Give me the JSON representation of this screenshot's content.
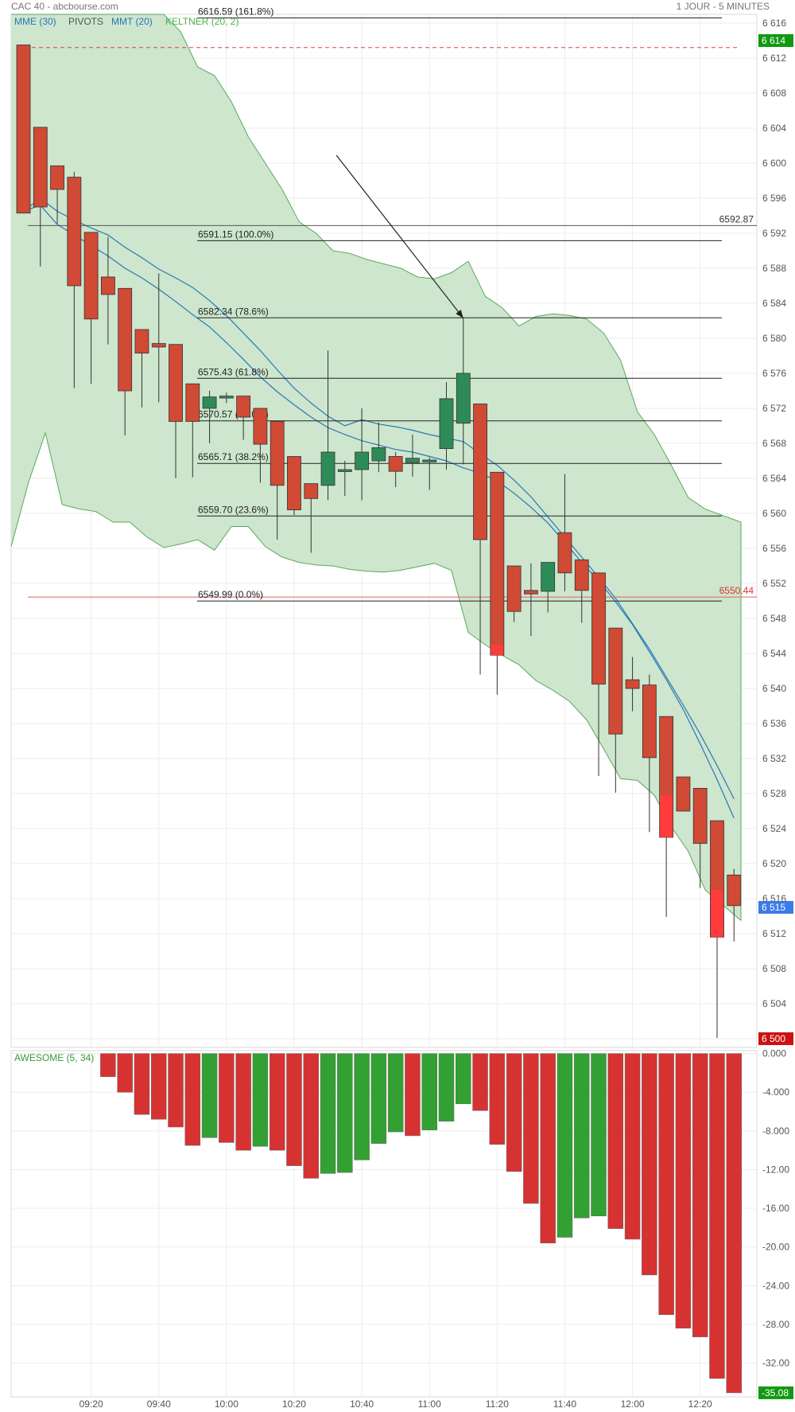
{
  "header": {
    "title": "CAC 40 - abcbourse.com",
    "timeframe": "1 JOUR - 5 MINUTES"
  },
  "legend": [
    "MME (30)",
    "PIVOTS",
    "MMT (20)",
    "KELTNER (20, 2)"
  ],
  "oscillator_legend": "AWESOME (5, 34)",
  "colors": {
    "up": "#2e8b57",
    "down": "#d04a35",
    "down_bright": "#ff3b3b",
    "keltner_fill": "#cde6cd",
    "keltner_line": "#5ca85c",
    "ma": "#2a77b7",
    "ao_up": "#33a033",
    "ao_down": "#d63232",
    "last_price_badge": "#3b7be8",
    "high_badge": "#119911",
    "low_badge": "#cc1111"
  },
  "chart_data": [
    {
      "type": "candlestick",
      "title": "CAC 40",
      "interval": "5 min",
      "ylim": [
        6499,
        6617
      ],
      "y_ticks": [
        6616,
        6612,
        6608,
        6604,
        6600,
        6596,
        6592,
        6588,
        6584,
        6580,
        6576,
        6572,
        6568,
        6564,
        6560,
        6556,
        6552,
        6548,
        6544,
        6540,
        6536,
        6532,
        6528,
        6524,
        6520,
        6516,
        6512,
        6508,
        6504,
        6500
      ],
      "x_tick_labels": [
        {
          "index": 4,
          "label": "09:20"
        },
        {
          "index": 8,
          "label": "09:40"
        },
        {
          "index": 12,
          "label": "10:00"
        },
        {
          "index": 16,
          "label": "10:20"
        },
        {
          "index": 20,
          "label": "10:40"
        },
        {
          "index": 24,
          "label": "11:00"
        },
        {
          "index": 28,
          "label": "11:20"
        },
        {
          "index": 32,
          "label": "11:40"
        },
        {
          "index": 36,
          "label": "12:00"
        },
        {
          "index": 40,
          "label": "12:20"
        }
      ],
      "candles": [
        {
          "o": 6613.5,
          "h": 6613.5,
          "l": 6594.3,
          "c": 6594.3
        },
        {
          "o": 6604.1,
          "h": 6604.1,
          "l": 6588.2,
          "c": 6595.0
        },
        {
          "o": 6599.7,
          "h": 6599.7,
          "l": 6593.1,
          "c": 6597.0
        },
        {
          "o": 6598.4,
          "h": 6599.0,
          "l": 6574.3,
          "c": 6586.0
        },
        {
          "o": 6592.1,
          "h": 6592.1,
          "l": 6574.8,
          "c": 6582.2
        },
        {
          "o": 6587.0,
          "h": 6591.6,
          "l": 6579.3,
          "c": 6585.0
        },
        {
          "o": 6585.7,
          "h": 6585.7,
          "l": 6568.9,
          "c": 6574.0
        },
        {
          "o": 6581.0,
          "h": 6581.0,
          "l": 6572.1,
          "c": 6578.3
        },
        {
          "o": 6579.4,
          "h": 6587.4,
          "l": 6572.7,
          "c": 6579.0
        },
        {
          "o": 6579.3,
          "h": 6579.3,
          "l": 6564.0,
          "c": 6570.5
        },
        {
          "o": 6574.8,
          "h": 6574.8,
          "l": 6564.1,
          "c": 6570.5
        },
        {
          "o": 6572.0,
          "h": 6574.0,
          "l": 6568.0,
          "c": 6573.3
        },
        {
          "o": 6573.2,
          "h": 6573.8,
          "l": 6572.6,
          "c": 6573.4
        },
        {
          "o": 6573.4,
          "h": 6573.4,
          "l": 6568.4,
          "c": 6571.0
        },
        {
          "o": 6572.0,
          "h": 6572.0,
          "l": 6563.5,
          "c": 6567.9
        },
        {
          "o": 6570.5,
          "h": 6570.5,
          "l": 6557.0,
          "c": 6563.2
        },
        {
          "o": 6566.5,
          "h": 6566.5,
          "l": 6559.8,
          "c": 6560.4
        },
        {
          "o": 6563.4,
          "h": 6563.4,
          "l": 6555.5,
          "c": 6561.7
        },
        {
          "o": 6563.2,
          "h": 6578.6,
          "l": 6561.5,
          "c": 6567.0
        },
        {
          "o": 6565.0,
          "h": 6566.0,
          "l": 6562.0,
          "c": 6565.0
        },
        {
          "o": 6565.0,
          "h": 6572.0,
          "l": 6561.5,
          "c": 6567.0
        },
        {
          "o": 6566.0,
          "h": 6570.4,
          "l": 6564.7,
          "c": 6567.5
        },
        {
          "o": 6566.5,
          "h": 6567.0,
          "l": 6563.0,
          "c": 6564.8
        },
        {
          "o": 6565.8,
          "h": 6569.0,
          "l": 6564.2,
          "c": 6566.3
        },
        {
          "o": 6565.9,
          "h": 6566.4,
          "l": 6562.7,
          "c": 6566.1
        },
        {
          "o": 6567.4,
          "h": 6575.0,
          "l": 6565.0,
          "c": 6573.1
        },
        {
          "o": 6570.3,
          "h": 6582.3,
          "l": 6565.6,
          "c": 6576.0
        },
        {
          "o": 6572.5,
          "h": 6572.5,
          "l": 6541.6,
          "c": 6557.0
        },
        {
          "o": 6564.7,
          "h": 6564.7,
          "l": 6539.3,
          "c": 6543.8
        },
        {
          "o": 6554.0,
          "h": 6554.0,
          "l": 6547.6,
          "c": 6548.8
        },
        {
          "o": 6551.2,
          "h": 6554.3,
          "l": 6546.0,
          "c": 6550.8
        },
        {
          "o": 6551.1,
          "h": 6554.4,
          "l": 6548.7,
          "c": 6554.4
        },
        {
          "o": 6557.8,
          "h": 6564.5,
          "l": 6551.1,
          "c": 6553.2
        },
        {
          "o": 6554.7,
          "h": 6554.7,
          "l": 6547.5,
          "c": 6551.2
        },
        {
          "o": 6553.2,
          "h": 6553.2,
          "l": 6530.0,
          "c": 6540.5
        },
        {
          "o": 6546.9,
          "h": 6546.9,
          "l": 6528.1,
          "c": 6534.8
        },
        {
          "o": 6541.0,
          "h": 6543.6,
          "l": 6537.4,
          "c": 6540.0
        },
        {
          "o": 6540.4,
          "h": 6541.6,
          "l": 6523.6,
          "c": 6532.1
        },
        {
          "o": 6536.8,
          "h": 6536.8,
          "l": 6513.9,
          "c": 6523.0
        },
        {
          "o": 6529.9,
          "h": 6529.9,
          "l": 6526.0,
          "c": 6526.0
        },
        {
          "o": 6528.6,
          "h": 6528.6,
          "l": 6517.2,
          "c": 6522.3
        },
        {
          "o": 6524.9,
          "h": 6524.9,
          "l": 6500.1,
          "c": 6511.6
        },
        {
          "o": 6518.7,
          "h": 6519.4,
          "l": 6511.1,
          "c": 6515.2
        }
      ],
      "keltner": {
        "upper": [
          6622,
          6622,
          6622,
          6622,
          6622,
          6622,
          6622,
          6622,
          6622,
          6620.0,
          6615.0,
          6611.0,
          6610.0,
          6607.0,
          6603.0,
          6600.0,
          6597.0,
          6593.3,
          6592.0,
          6590.0,
          6589.7,
          6589.0,
          6588.5,
          6588.0,
          6587.0,
          6586.8,
          6587.5,
          6588.8,
          6584.8,
          6583.5,
          6581.4,
          6582.5,
          6582.8,
          6582.6,
          6582.2,
          6580.6,
          6577.5,
          6571.6,
          6569.0,
          6565.5,
          6561.8,
          6560.5,
          6559.0
        ],
        "lower": [
          6556.2,
          6563.5,
          6569.2,
          6561.0,
          6560.5,
          6560.2,
          6559.0,
          6559.0,
          6557.3,
          6556.1,
          6556.5,
          6557.0,
          6555.8,
          6558.5,
          6558.5,
          6556.2,
          6555.0,
          6554.4,
          6554.1,
          6554.0,
          6553.6,
          6553.4,
          6553.3,
          6553.5,
          6553.9,
          6554.3,
          6553.5,
          6546.4,
          6545.0,
          6543.8,
          6542.7,
          6540.9,
          6539.8,
          6538.5,
          6536.4,
          6533.1,
          6529.7,
          6529.5,
          6527.8,
          6524.2,
          6521.4,
          6517.0,
          6513.5
        ]
      },
      "mme_30": [
        6594.5,
        6596.0,
        6594.5,
        6593.5,
        6592.6,
        6591.8,
        6590.4,
        6589.2,
        6587.9,
        6586.9,
        6585.8,
        6584.3,
        6582.6,
        6580.6,
        6578.6,
        6576.4,
        6574.3,
        6572.6,
        6571.1,
        6570.0,
        6570.7,
        6570.2,
        6569.9,
        6569.5,
        6569.0,
        6568.6,
        6568.2,
        6566.8,
        6565.5,
        6563.8,
        6561.9,
        6559.6,
        6557.3,
        6555.0,
        6552.7,
        6550.3,
        6547.4,
        6544.5,
        6541.3,
        6538.1,
        6534.8,
        6531.2,
        6527.4
      ],
      "mmt_20": [
        6594.5,
        6595.2,
        6593.0,
        6591.8,
        6590.6,
        6589.4,
        6588.0,
        6586.9,
        6585.6,
        6584.2,
        6582.7,
        6581.3,
        6579.5,
        6577.6,
        6575.6,
        6573.9,
        6572.4,
        6571.0,
        6569.8,
        6569.0,
        6568.3,
        6567.8,
        6567.3,
        6567.0,
        6566.5,
        6566.0,
        6565.2,
        6564.6,
        6563.7,
        6562.3,
        6560.7,
        6558.9,
        6556.7,
        6554.4,
        6552.3,
        6549.9,
        6547.3,
        6544.2,
        6541.0,
        6537.6,
        6533.7,
        6529.6,
        6525.2
      ],
      "fibonacci": [
        {
          "level": 6616.59,
          "label": "6616.59  (161.8%)"
        },
        {
          "level": 6591.15,
          "label": "6591.15  (100.0%)"
        },
        {
          "level": 6582.34,
          "label": "6582.34  (78.6%)"
        },
        {
          "level": 6575.43,
          "label": "6575.43  (61.8%)"
        },
        {
          "level": 6570.57,
          "label": "6570.57  (50.0%)"
        },
        {
          "level": 6565.71,
          "label": "6565.71  (38.2%)"
        },
        {
          "level": 6559.7,
          "label": "6559.70  (23.6%)"
        },
        {
          "level": 6549.99,
          "label": "6549.99  (0.0%)"
        }
      ],
      "pivots": [
        {
          "level": 6592.87,
          "label": "6592.87",
          "color": "#333333"
        },
        {
          "level": 6550.44,
          "label": "6550.44",
          "color": "#dd3333"
        }
      ],
      "reference_line": {
        "level": 6613.2
      },
      "arrow": {
        "from": [
          18.5,
          6600.9
        ],
        "to": [
          26.0,
          6582.3
        ]
      },
      "price_badges": [
        {
          "value": 6614,
          "label": "6 614",
          "kind": "high"
        },
        {
          "value": 6515,
          "label": "6 515",
          "kind": "last"
        },
        {
          "value": 6500,
          "label": "6 500",
          "kind": "low"
        }
      ]
    },
    {
      "type": "bar",
      "title": "AWESOME (5, 34)",
      "ylim": [
        -35.5,
        0.3
      ],
      "y_ticks": [
        {
          "v": 0,
          "label": "0.000"
        },
        {
          "v": -4,
          "label": "-4.000"
        },
        {
          "v": -8,
          "label": "-8.000"
        },
        {
          "v": -12,
          "label": "-12.00"
        },
        {
          "v": -16,
          "label": "-16.00"
        },
        {
          "v": -20,
          "label": "-20.00"
        },
        {
          "v": -24,
          "label": "-24.00"
        },
        {
          "v": -28,
          "label": "-28.00"
        },
        {
          "v": -32,
          "label": "-32.00"
        }
      ],
      "start_index": 5,
      "values": [
        -2.4,
        -4.0,
        -6.3,
        -6.8,
        -7.6,
        -9.5,
        -8.7,
        -9.2,
        -10.0,
        -9.6,
        -10.0,
        -11.6,
        -12.9,
        -12.4,
        -12.3,
        -11.0,
        -9.3,
        -8.1,
        -8.5,
        -7.9,
        -7.0,
        -5.2,
        -5.9,
        -9.4,
        -12.2,
        -15.5,
        -19.6,
        -19.0,
        -17.0,
        -16.8,
        -18.1,
        -19.2,
        -22.9,
        -27.0,
        -28.4,
        -29.3,
        -33.6,
        -35.08
      ],
      "colors": [
        "down",
        "down",
        "down",
        "down",
        "down",
        "down",
        "up",
        "down",
        "down",
        "up",
        "down",
        "down",
        "down",
        "up",
        "up",
        "up",
        "up",
        "up",
        "down",
        "up",
        "up",
        "up",
        "down",
        "down",
        "down",
        "down",
        "down",
        "up",
        "up",
        "up",
        "down",
        "down",
        "down",
        "down",
        "down",
        "down",
        "down",
        "down"
      ],
      "last_badge": "-35.08"
    }
  ]
}
